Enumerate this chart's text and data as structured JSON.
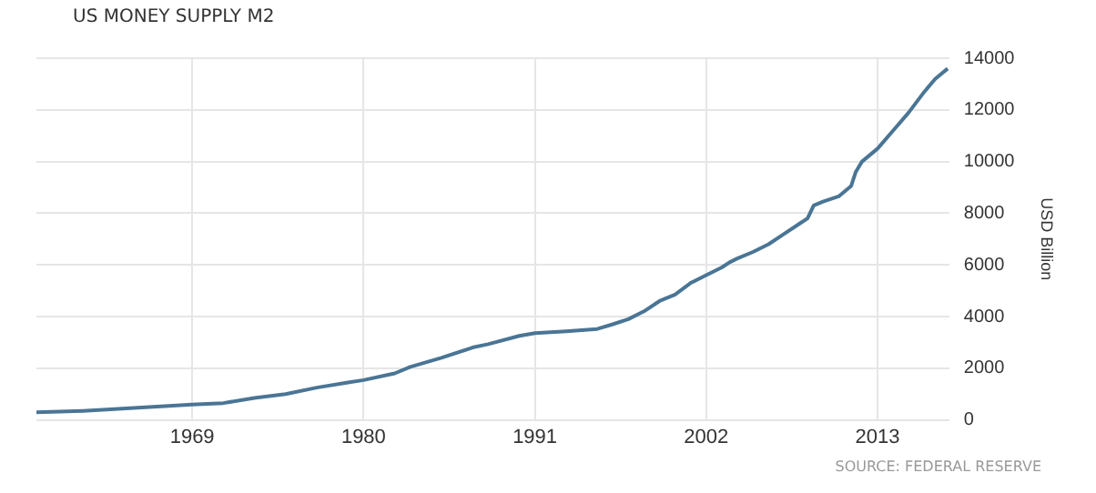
{
  "chart_data": {
    "type": "line",
    "title": "US MONEY SUPPLY M2",
    "ylabel": "USD Billion",
    "annotations": [
      "SOURCE: FEDERAL RESERVE"
    ],
    "x": [
      1959,
      1962,
      1965,
      1967,
      1969,
      1971,
      1973,
      1975,
      1977,
      1979,
      1980,
      1982,
      1983,
      1985,
      1987,
      1988,
      1990,
      1991,
      1993,
      1995,
      1996,
      1997,
      1998,
      1999,
      2000,
      2001,
      2002,
      2003,
      2003.5,
      2004,
      2005,
      2006,
      2007,
      2008,
      2008.5,
      2008.9,
      2009.5,
      2010.5,
      2011.3,
      2011.6,
      2012,
      2013,
      2014,
      2015,
      2016,
      2016.7,
      2017.5
    ],
    "series": [
      {
        "color": "#4a7595",
        "values": [
          290,
          350,
          450,
          520,
          590,
          650,
          850,
          1000,
          1250,
          1450,
          1540,
          1800,
          2050,
          2400,
          2800,
          2930,
          3250,
          3360,
          3430,
          3520,
          3700,
          3900,
          4200,
          4600,
          4850,
          5300,
          5600,
          5900,
          6100,
          6250,
          6500,
          6800,
          7200,
          7600,
          7800,
          8300,
          8450,
          8650,
          9050,
          9600,
          10000,
          10500,
          11200,
          11900,
          12700,
          13200,
          13600
        ]
      }
    ],
    "xlim": [
      1959,
      2017.6
    ],
    "xticks": [
      1969,
      1980,
      1991,
      2002,
      2013
    ],
    "ylim": [
      0,
      14000
    ],
    "yticks": [
      0,
      2000,
      4000,
      6000,
      8000,
      10000,
      12000,
      14000
    ],
    "grid": true,
    "legend": false,
    "marker": "none",
    "line_style": "solid"
  }
}
